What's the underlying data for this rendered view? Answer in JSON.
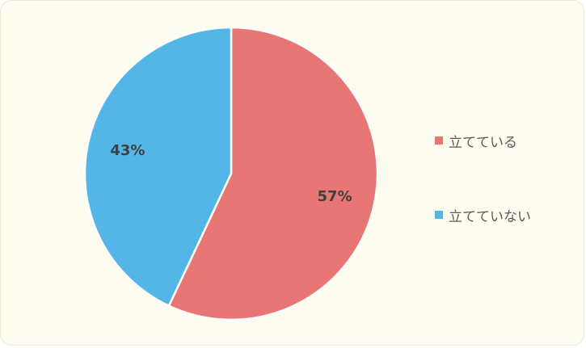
{
  "chart_data": {
    "type": "pie",
    "title": "",
    "slices": [
      {
        "name": "立てている",
        "value": 57,
        "label": "57%",
        "color": "#e87674"
      },
      {
        "name": "立てていない",
        "value": 43,
        "label": "43%",
        "color": "#54b6e6"
      }
    ],
    "start": "top",
    "direction": "clockwise",
    "legend_position": "right"
  },
  "colors": {
    "background": "#fffdf0",
    "slice_border": "#ffffff",
    "label_text": "#404040",
    "legend_text": "#595959"
  }
}
